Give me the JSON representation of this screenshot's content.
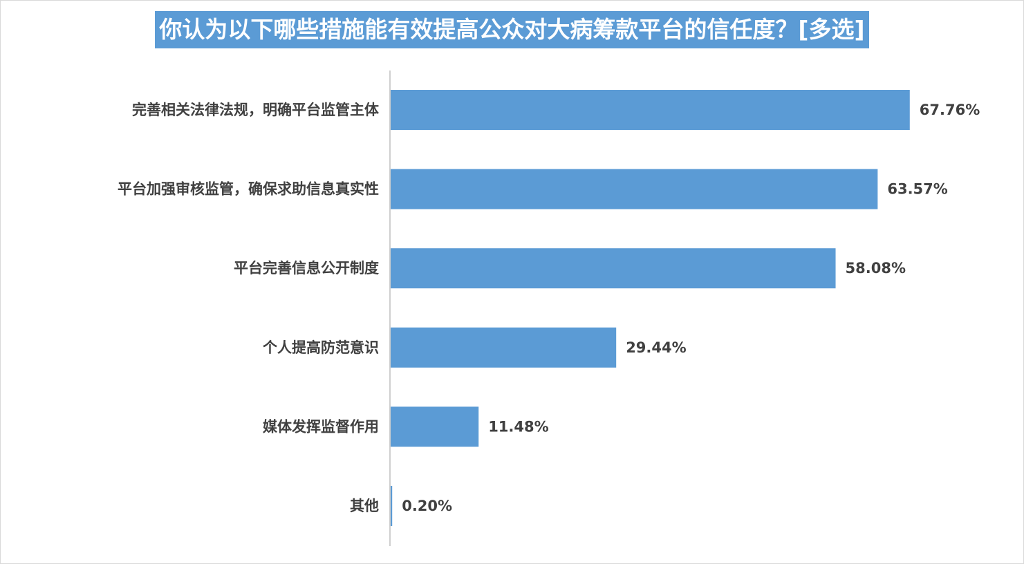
{
  "chart_data": {
    "type": "bar",
    "orientation": "horizontal",
    "title": "你认为以下哪些措施能有效提高公众对大病筹款平台的信任度？[多选]",
    "categories": [
      "完善相关法律法规，明确平台监管主体",
      "平台加强审核监管，确保求助信息真实性",
      "平台完善信息公开制度",
      "个人提高防范意识",
      "媒体发挥监督作用",
      "其他"
    ],
    "values": [
      67.76,
      63.57,
      58.08,
      29.44,
      11.48,
      0.2
    ],
    "value_labels": [
      "67.76%",
      "63.57%",
      "58.08%",
      "29.44%",
      "11.48%",
      "0.20%"
    ],
    "unit": "%",
    "xlim": [
      0,
      80
    ],
    "grid": false,
    "legend": "none",
    "colors": {
      "bar": "#5b9bd5",
      "title_bg": "#5b9bd5",
      "title_text": "#ffffff",
      "label_text": "#404040",
      "axis": "#bfbfbf"
    }
  }
}
